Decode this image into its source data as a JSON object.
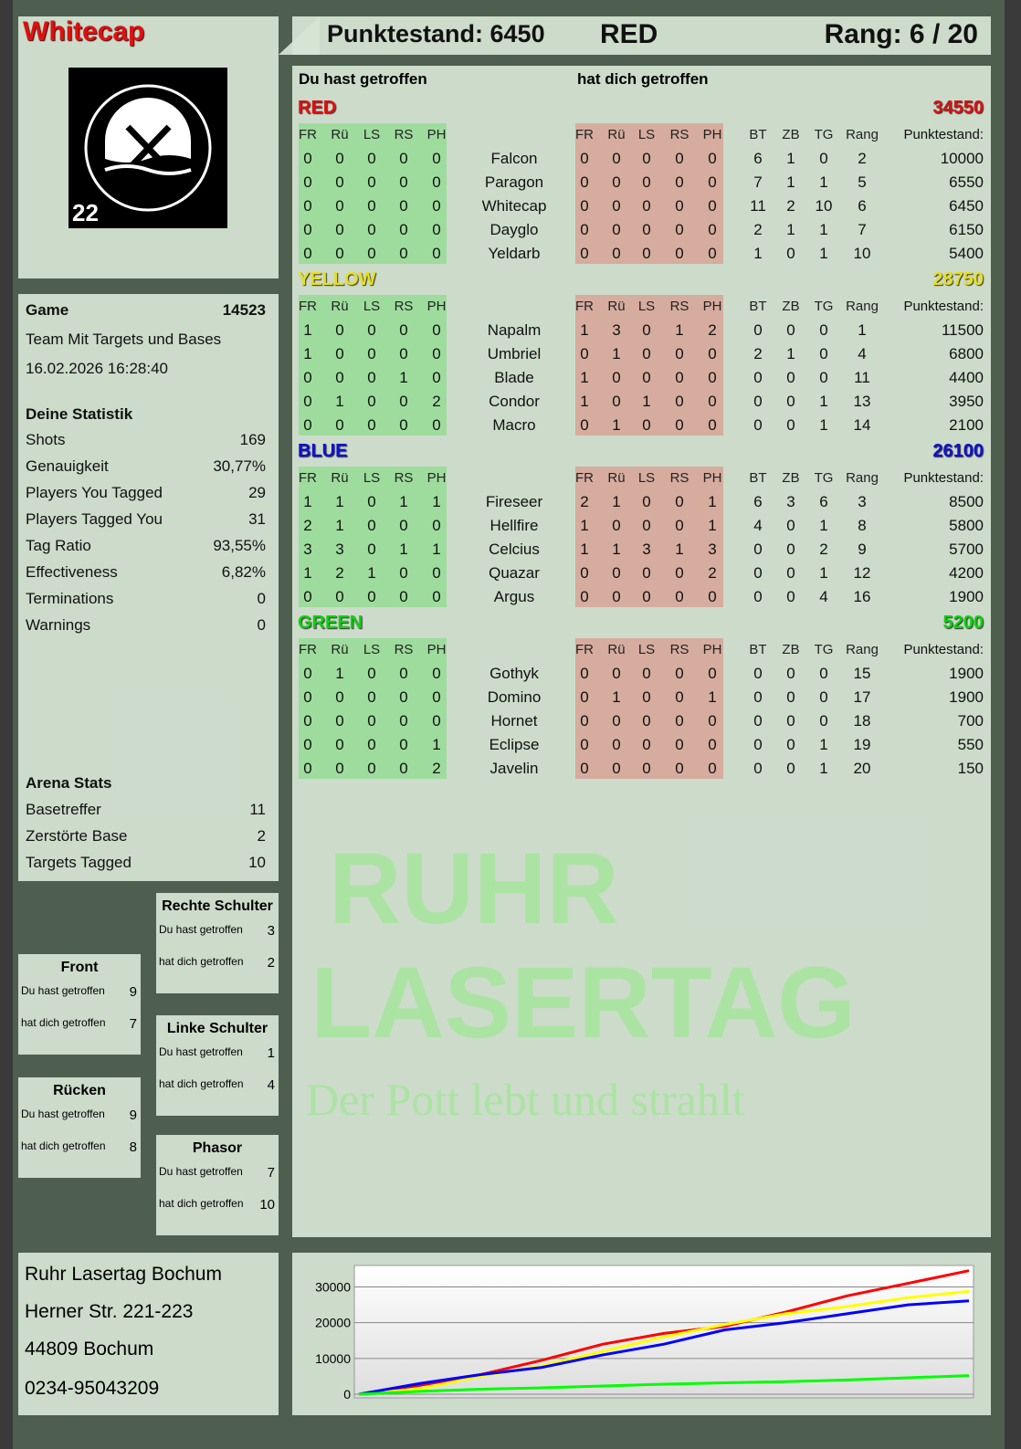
{
  "header": {
    "player": "Whitecap",
    "score_label": "Punktestand: 6450",
    "team": "RED",
    "rank_label": "Rang: 6 / 20",
    "badge_number": "22",
    "logo_text": "RUHR LASERTAG"
  },
  "colors": {
    "red": "#e01010",
    "yellow": "#e8e020",
    "blue": "#1010d0",
    "green": "#10d010",
    "hit_bg": "#7cdc7c",
    "hitby_bg": "#dc8c82"
  },
  "main": {
    "you_hit": "Du hast getroffen",
    "hit_you": "hat dich getroffen",
    "cols_left": [
      "FR",
      "Rü",
      "LS",
      "RS",
      "PH"
    ],
    "cols_stats": [
      "BT",
      "ZB",
      "TG",
      "Rang"
    ],
    "points_header": "Punktestand:",
    "teams": [
      {
        "name": "RED",
        "total": "34550",
        "color": "#e01010",
        "players": [
          {
            "name": "Falcon",
            "hit": [
              0,
              0,
              0,
              0,
              0
            ],
            "hitby": [
              0,
              0,
              0,
              0,
              0
            ],
            "bt": 6,
            "zb": 1,
            "tg": 0,
            "rang": 2,
            "points": 10000
          },
          {
            "name": "Paragon",
            "hit": [
              0,
              0,
              0,
              0,
              0
            ],
            "hitby": [
              0,
              0,
              0,
              0,
              0
            ],
            "bt": 7,
            "zb": 1,
            "tg": 1,
            "rang": 5,
            "points": 6550
          },
          {
            "name": "Whitecap",
            "hit": [
              0,
              0,
              0,
              0,
              0
            ],
            "hitby": [
              0,
              0,
              0,
              0,
              0
            ],
            "bt": 11,
            "zb": 2,
            "tg": 10,
            "rang": 6,
            "points": 6450
          },
          {
            "name": "Dayglo",
            "hit": [
              0,
              0,
              0,
              0,
              0
            ],
            "hitby": [
              0,
              0,
              0,
              0,
              0
            ],
            "bt": 2,
            "zb": 1,
            "tg": 1,
            "rang": 7,
            "points": 6150
          },
          {
            "name": "Yeldarb",
            "hit": [
              0,
              0,
              0,
              0,
              0
            ],
            "hitby": [
              0,
              0,
              0,
              0,
              0
            ],
            "bt": 1,
            "zb": 0,
            "tg": 1,
            "rang": 10,
            "points": 5400
          }
        ]
      },
      {
        "name": "YELLOW",
        "total": "28750",
        "color": "#e8e020",
        "players": [
          {
            "name": "Napalm",
            "hit": [
              1,
              0,
              0,
              0,
              0
            ],
            "hitby": [
              1,
              3,
              0,
              1,
              2
            ],
            "bt": 0,
            "zb": 0,
            "tg": 0,
            "rang": 1,
            "points": 11500
          },
          {
            "name": "Umbriel",
            "hit": [
              1,
              0,
              0,
              0,
              0
            ],
            "hitby": [
              0,
              1,
              0,
              0,
              0
            ],
            "bt": 2,
            "zb": 1,
            "tg": 0,
            "rang": 4,
            "points": 6800
          },
          {
            "name": "Blade",
            "hit": [
              0,
              0,
              0,
              1,
              0
            ],
            "hitby": [
              1,
              0,
              0,
              0,
              0
            ],
            "bt": 0,
            "zb": 0,
            "tg": 0,
            "rang": 11,
            "points": 4400
          },
          {
            "name": "Condor",
            "hit": [
              0,
              1,
              0,
              0,
              2
            ],
            "hitby": [
              1,
              0,
              1,
              0,
              0
            ],
            "bt": 0,
            "zb": 0,
            "tg": 1,
            "rang": 13,
            "points": 3950
          },
          {
            "name": "Macro",
            "hit": [
              0,
              0,
              0,
              0,
              0
            ],
            "hitby": [
              0,
              1,
              0,
              0,
              0
            ],
            "bt": 0,
            "zb": 0,
            "tg": 1,
            "rang": 14,
            "points": 2100
          }
        ]
      },
      {
        "name": "BLUE",
        "total": "26100",
        "color": "#1010d0",
        "players": [
          {
            "name": "Fireseer",
            "hit": [
              1,
              1,
              0,
              1,
              1
            ],
            "hitby": [
              2,
              1,
              0,
              0,
              1
            ],
            "bt": 6,
            "zb": 3,
            "tg": 6,
            "rang": 3,
            "points": 8500
          },
          {
            "name": "Hellfire",
            "hit": [
              2,
              1,
              0,
              0,
              0
            ],
            "hitby": [
              1,
              0,
              0,
              0,
              1
            ],
            "bt": 4,
            "zb": 0,
            "tg": 1,
            "rang": 8,
            "points": 5800
          },
          {
            "name": "Celcius",
            "hit": [
              3,
              3,
              0,
              1,
              1
            ],
            "hitby": [
              1,
              1,
              3,
              1,
              3
            ],
            "bt": 0,
            "zb": 0,
            "tg": 2,
            "rang": 9,
            "points": 5700
          },
          {
            "name": "Quazar",
            "hit": [
              1,
              2,
              1,
              0,
              0
            ],
            "hitby": [
              0,
              0,
              0,
              0,
              2
            ],
            "bt": 0,
            "zb": 0,
            "tg": 1,
            "rang": 12,
            "points": 4200
          },
          {
            "name": "Argus",
            "hit": [
              0,
              0,
              0,
              0,
              0
            ],
            "hitby": [
              0,
              0,
              0,
              0,
              0
            ],
            "bt": 0,
            "zb": 0,
            "tg": 4,
            "rang": 16,
            "points": 1900
          }
        ]
      },
      {
        "name": "GREEN",
        "total": "5200",
        "color": "#10d010",
        "players": [
          {
            "name": "Gothyk",
            "hit": [
              0,
              1,
              0,
              0,
              0
            ],
            "hitby": [
              0,
              0,
              0,
              0,
              0
            ],
            "bt": 0,
            "zb": 0,
            "tg": 0,
            "rang": 15,
            "points": 1900
          },
          {
            "name": "Domino",
            "hit": [
              0,
              0,
              0,
              0,
              0
            ],
            "hitby": [
              0,
              1,
              0,
              0,
              1
            ],
            "bt": 0,
            "zb": 0,
            "tg": 0,
            "rang": 17,
            "points": 1900
          },
          {
            "name": "Hornet",
            "hit": [
              0,
              0,
              0,
              0,
              0
            ],
            "hitby": [
              0,
              0,
              0,
              0,
              0
            ],
            "bt": 0,
            "zb": 0,
            "tg": 0,
            "rang": 18,
            "points": 700
          },
          {
            "name": "Eclipse",
            "hit": [
              0,
              0,
              0,
              0,
              1
            ],
            "hitby": [
              0,
              0,
              0,
              0,
              0
            ],
            "bt": 0,
            "zb": 0,
            "tg": 1,
            "rang": 19,
            "points": 550
          },
          {
            "name": "Javelin",
            "hit": [
              0,
              0,
              0,
              0,
              2
            ],
            "hitby": [
              0,
              0,
              0,
              0,
              0
            ],
            "bt": 0,
            "zb": 0,
            "tg": 1,
            "rang": 20,
            "points": 150
          }
        ]
      }
    ]
  },
  "game": {
    "label": "Game",
    "id": "14523",
    "mode": "Team Mit Targets und Bases",
    "datetime": "16.02.2026 16:28:40",
    "stats_title": "Deine Statistik",
    "stats": [
      {
        "label": "Shots",
        "value": "169"
      },
      {
        "label": "Genauigkeit",
        "value": "30,77%"
      },
      {
        "label": "Players You Tagged",
        "value": "29"
      },
      {
        "label": "Players Tagged You",
        "value": "31"
      },
      {
        "label": "Tag Ratio",
        "value": "93,55%"
      },
      {
        "label": "Effectiveness",
        "value": "6,82%"
      },
      {
        "label": "Terminations",
        "value": "0"
      },
      {
        "label": "Warnings",
        "value": "0"
      }
    ],
    "arena_title": "Arena Stats",
    "arena": [
      {
        "label": "Basetreffer",
        "value": "11"
      },
      {
        "label": "Zerstörte Base",
        "value": "2"
      },
      {
        "label": "Targets Tagged",
        "value": "10"
      }
    ]
  },
  "hits": [
    {
      "title": "Rechte Schulter",
      "you_hit_label": "Du hast getroffen",
      "you_hit": "3",
      "hit_you_label": "hat dich getroffen",
      "hit_you": "2"
    },
    {
      "title": "Front",
      "you_hit_label": "Du hast getroffen",
      "you_hit": "9",
      "hit_you_label": "hat dich getroffen",
      "hit_you": "7"
    },
    {
      "title": "Linke Schulter",
      "you_hit_label": "Du hast getroffen",
      "you_hit": "1",
      "hit_you_label": "hat dich getroffen",
      "hit_you": "4"
    },
    {
      "title": "Rücken",
      "you_hit_label": "Du hast getroffen",
      "you_hit": "9",
      "hit_you_label": "hat dich getroffen",
      "hit_you": "8"
    },
    {
      "title": "Phasor",
      "you_hit_label": "Du hast getroffen",
      "you_hit": "7",
      "hit_you_label": "hat dich getroffen",
      "hit_you": "10"
    }
  ],
  "address": {
    "line1": "Ruhr Lasertag Bochum",
    "line2": "Herner Str. 221-223",
    "line3": "44809 Bochum",
    "line4": "0234-95043209"
  },
  "watermark": {
    "line1": "RUHR",
    "line2": "LASERTAG",
    "line3": "Der Pott lebt und strahlt"
  },
  "chart_data": {
    "type": "line",
    "ylim": [
      0,
      36000
    ],
    "yticks": [
      "0",
      "10000",
      "20000",
      "30000"
    ],
    "grid": true,
    "legend": "none",
    "x": [
      0,
      1,
      2,
      3,
      4,
      5,
      6,
      7,
      8,
      9,
      10
    ],
    "series": [
      {
        "color": "#ff0000",
        "values": [
          0,
          2500,
          5500,
          9500,
          14000,
          17000,
          19000,
          23000,
          27500,
          31000,
          34550
        ]
      },
      {
        "color": "#ffff00",
        "values": [
          0,
          1500,
          5000,
          8000,
          12000,
          16000,
          19500,
          22500,
          24500,
          27000,
          28750
        ]
      },
      {
        "color": "#0000ff",
        "values": [
          0,
          3000,
          5500,
          7500,
          11000,
          14000,
          18000,
          20000,
          22500,
          25000,
          26100
        ]
      },
      {
        "color": "#00ff00",
        "values": [
          0,
          800,
          1400,
          1800,
          2300,
          2800,
          3200,
          3500,
          4000,
          4600,
          5200
        ]
      }
    ]
  }
}
